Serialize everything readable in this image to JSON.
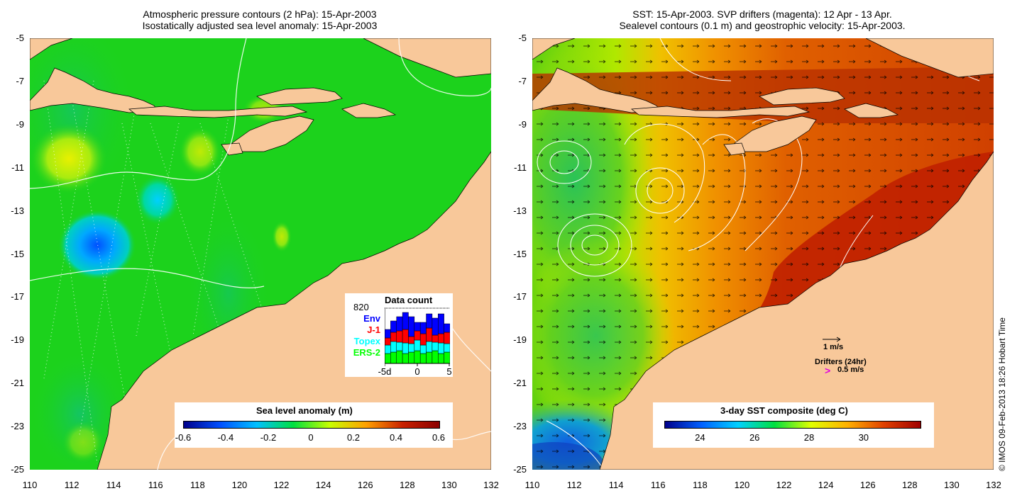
{
  "left_panel": {
    "title_line1": "Atmospheric pressure contours (2 hPa): 15-Apr-2003",
    "title_line2": "Isostatically adjusted sea level anomaly: 15-Apr-2003",
    "colorbar": {
      "title": "Sea level anomaly (m)",
      "ticks": [
        "-0.6",
        "-0.4",
        "-0.2",
        "0",
        "0.2",
        "0.4",
        "0.6"
      ],
      "colors": [
        "#00008b",
        "#0050ff",
        "#00c0ff",
        "#00e040",
        "#c8ff00",
        "#ffa000",
        "#c82000",
        "#8b0000"
      ]
    },
    "data_count": {
      "title": "Data count",
      "count": "820",
      "legend": [
        "Env",
        "J-1",
        "Topex",
        "ERS-2"
      ],
      "legend_colors": [
        "#0000ff",
        "#ff0000",
        "#00ffff",
        "#00ff00"
      ],
      "x_ticks": [
        "-5d",
        "0",
        "5"
      ]
    }
  },
  "right_panel": {
    "title_line1": "SST: 15-Apr-2003. SVP drifters (magenta): 12 Apr - 13 Apr.",
    "title_line2": "Sealevel contours (0.1 m) and geostrophic velocity: 15-Apr-2003.",
    "colorbar": {
      "title": "3-day SST composite (deg C)",
      "ticks": [
        "24",
        "26",
        "28",
        "30"
      ],
      "colors": [
        "#00008b",
        "#0060ff",
        "#00d0ff",
        "#00e040",
        "#e0ff00",
        "#ffb000",
        "#e04000",
        "#a00000"
      ]
    },
    "velocity_scale": "1 m/s",
    "drifters_label": "Drifters (24hr)",
    "drifter_speed": "0.5 m/s",
    "drifter_symbol": ">"
  },
  "axes": {
    "y_ticks": [
      "-5",
      "-7",
      "-9",
      "-11",
      "-13",
      "-15",
      "-17",
      "-19",
      "-21",
      "-23",
      "-25"
    ],
    "x_ticks": [
      "110",
      "112",
      "114",
      "116",
      "118",
      "120",
      "122",
      "124",
      "126",
      "128",
      "130",
      "132"
    ]
  },
  "colors": {
    "land": "#f8c89a",
    "sea_left": "#1cd21c",
    "sst_warm": "#d85000",
    "sst_hot": "#a00000",
    "sst_cool": "#88e000"
  },
  "credit": "© IMOS 09-Feb-2013 18:26 Hobart Time"
}
